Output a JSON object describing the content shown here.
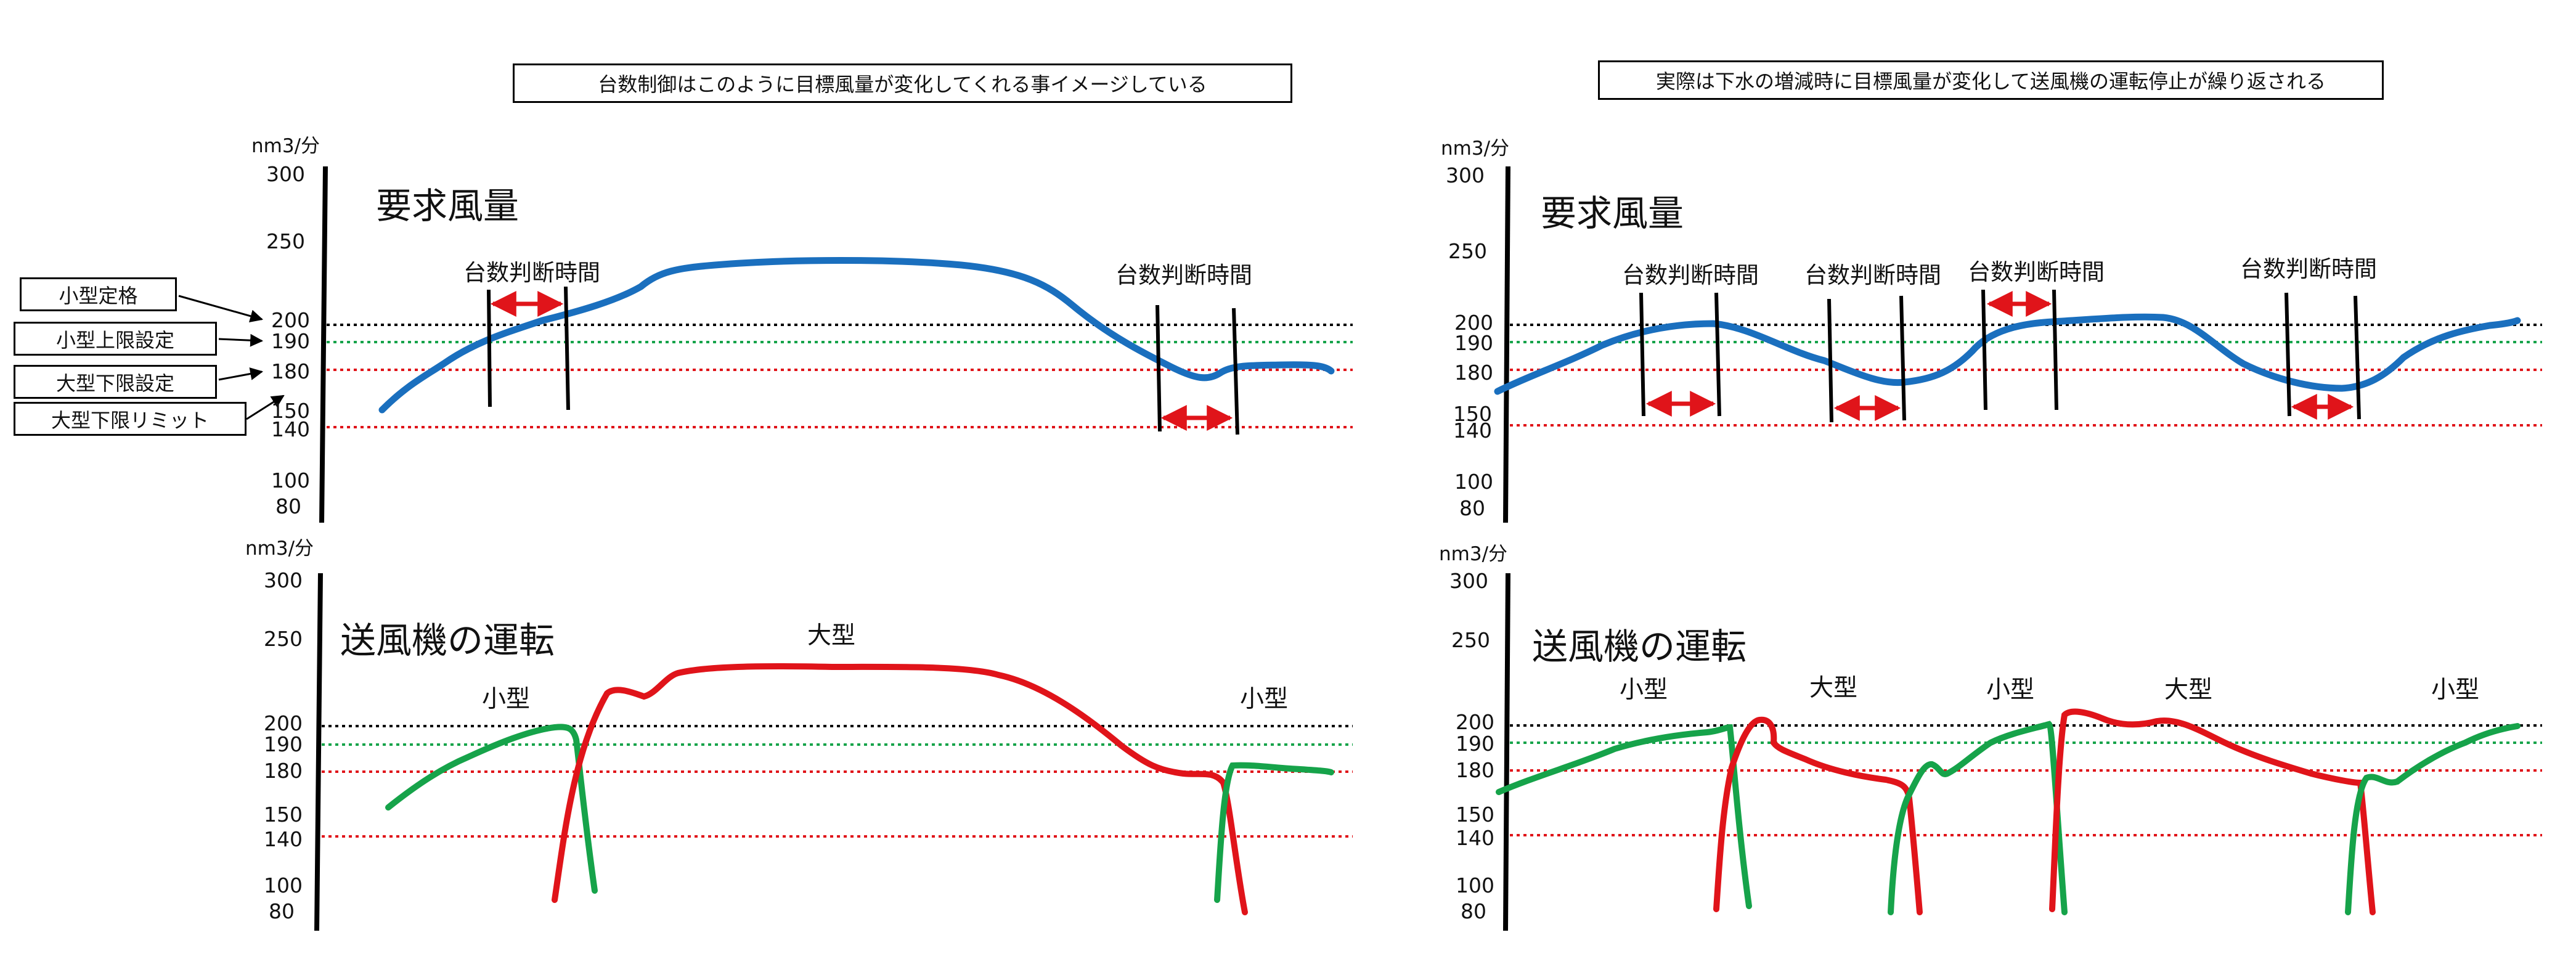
{
  "headers": {
    "left": "台数制御はこのように目標風量が変化してくれる事イメージしている",
    "right": "実際は下水の増減時に目標風量が変化して送風機の運転停止が繰り返される"
  },
  "unit": "nm3/分",
  "ticks": [
    "300",
    "250",
    "200",
    "190",
    "180",
    "150",
    "140",
    "100",
    "80"
  ],
  "panel_titles": {
    "demand": "要求風量",
    "operation": "送風機の運転"
  },
  "judgment_label": "台数判断時間",
  "legend": {
    "small_rated": "小型定格",
    "small_upper": "小型上限設定",
    "large_lower": "大型下限設定",
    "large_lower_limit": "大型下限リミット"
  },
  "operation_labels": {
    "small": "小型",
    "large": "大型"
  },
  "colors": {
    "demand_line": "#1a6fbe",
    "small_blower": "#16a34a",
    "large_blower": "#e0141a",
    "upper_limit_dotted": "#16a34a",
    "lower_limit_dotted": "#e0141a",
    "rated_dotted": "#000000"
  },
  "chart_data": [
    {
      "type": "line",
      "title": "要求風量",
      "ylabel": "nm3/分",
      "y_ticks": [
        300,
        250,
        200,
        190,
        180,
        150,
        140,
        100,
        80
      ],
      "reference_lines": [
        {
          "name": "小型定格",
          "y": 200
        },
        {
          "name": "小型上限設定",
          "y": 190
        },
        {
          "name": "大型下限設定",
          "y": 180
        },
        {
          "name": "大型下限リミット",
          "y": 140
        }
      ],
      "judgment_windows": 2,
      "series": [
        {
          "values": [
            150,
            165,
            182,
            197,
            212,
            232,
            238,
            232,
            212,
            182,
            177,
            181
          ]
        }
      ]
    },
    {
      "type": "line",
      "title": "送風機の運転",
      "ylabel": "nm3/分",
      "y_ticks": [
        300,
        250,
        200,
        190,
        180,
        150,
        140,
        100,
        80
      ],
      "series": [
        {
          "name": "小型",
          "values": [
            150,
            182,
            197,
            200,
            195,
            80
          ]
        },
        {
          "name": "大型",
          "values": [
            80,
            215,
            235,
            237,
            228,
            190,
            175,
            80
          ]
        },
        {
          "name": "小型",
          "values": [
            90,
            182,
            180
          ]
        }
      ]
    },
    {
      "type": "line",
      "title": "要求風量",
      "ylabel": "nm3/分",
      "y_ticks": [
        300,
        250,
        200,
        190,
        180,
        150,
        140,
        100,
        80
      ],
      "judgment_windows": 4,
      "series": [
        {
          "values": [
            168,
            190,
            200,
            182,
            172,
            182,
            200,
            204,
            182,
            172,
            200
          ]
        }
      ]
    },
    {
      "type": "line",
      "title": "送風機の運転",
      "ylabel": "nm3/分",
      "y_ticks": [
        300,
        250,
        200,
        190,
        180,
        150,
        140,
        100,
        80
      ],
      "series": [
        {
          "name": "小型",
          "values": [
            168,
            185,
            198,
            200,
            80
          ]
        },
        {
          "name": "大型",
          "values": [
            80,
            202,
            188,
            175,
            172,
            80
          ]
        },
        {
          "name": "小型",
          "values": [
            80,
            182,
            190,
            200,
            80
          ]
        },
        {
          "name": "大型",
          "values": [
            80,
            206,
            195,
            180,
            172,
            80
          ]
        },
        {
          "name": "小型",
          "values": [
            80,
            182,
            200
          ]
        }
      ]
    }
  ]
}
